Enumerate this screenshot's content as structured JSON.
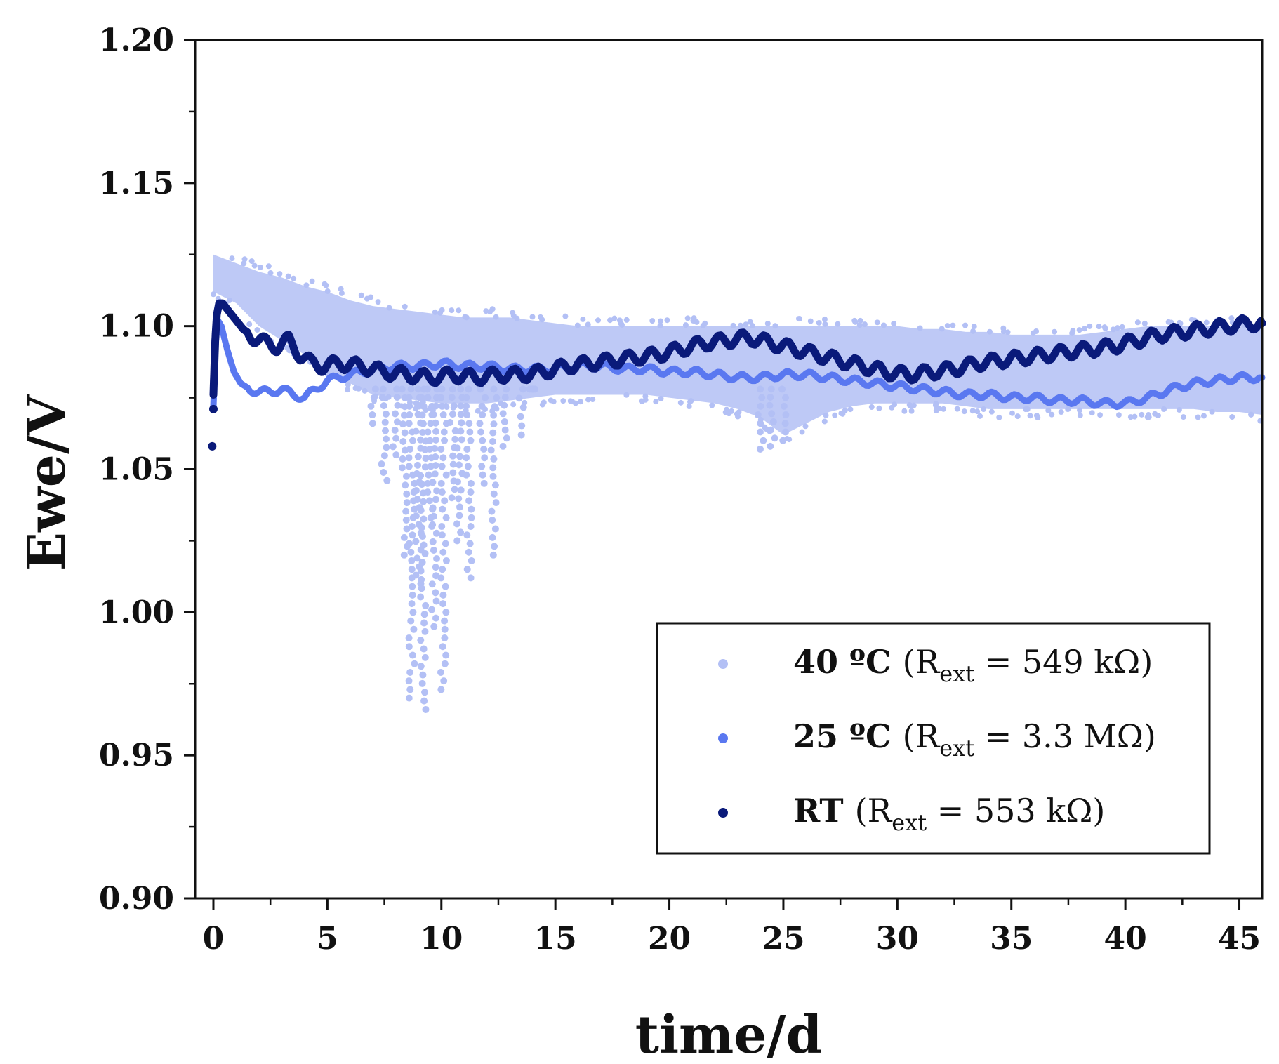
{
  "chart_data": {
    "type": "scatter",
    "title": "",
    "xlabel": "time/d",
    "ylabel": "Ewe/V",
    "xlim": [
      -0.8,
      46
    ],
    "ylim": [
      0.9,
      1.2
    ],
    "xticks": [
      "0",
      "5",
      "10",
      "15",
      "20",
      "25",
      "30",
      "35",
      "40",
      "45"
    ],
    "xtick_values": [
      0,
      5,
      10,
      15,
      20,
      25,
      30,
      35,
      40,
      45
    ],
    "yticks": [
      "0.90",
      "0.95",
      "1.00",
      "1.05",
      "1.10",
      "1.15",
      "1.20"
    ],
    "ytick_values": [
      0.9,
      0.95,
      1.0,
      1.05,
      1.1,
      1.15,
      1.2
    ],
    "legend_position": "lower-right",
    "series": [
      {
        "name": "40 ºC",
        "legend_bold": "40 ºC",
        "legend_open": "(R",
        "legend_sub": "ext",
        "legend_rest": " = 549 kΩ)",
        "color": "#b3c0f5",
        "band": {
          "x": [
            0,
            1,
            2,
            3,
            4,
            5,
            6,
            7,
            8,
            9,
            10,
            11,
            12,
            13,
            14,
            15,
            16,
            17,
            18,
            19,
            20,
            21,
            22,
            23,
            24,
            25,
            26,
            27,
            28,
            29,
            30,
            31,
            32,
            33,
            34,
            35,
            36,
            37,
            38,
            39,
            40,
            41,
            42,
            43,
            44,
            45,
            46
          ],
          "upper": [
            1.125,
            1.122,
            1.119,
            1.117,
            1.114,
            1.112,
            1.109,
            1.107,
            1.106,
            1.105,
            1.104,
            1.103,
            1.103,
            1.103,
            1.102,
            1.101,
            1.1,
            1.1,
            1.1,
            1.1,
            1.1,
            1.1,
            1.1,
            1.1,
            1.1,
            1.1,
            1.1,
            1.1,
            1.1,
            1.1,
            1.1,
            1.099,
            1.099,
            1.098,
            1.098,
            1.097,
            1.097,
            1.097,
            1.097,
            1.098,
            1.099,
            1.1,
            1.1,
            1.1,
            1.1,
            1.1,
            1.1
          ],
          "lower": [
            1.112,
            1.108,
            1.1,
            1.095,
            1.09,
            1.084,
            1.08,
            1.076,
            1.075,
            1.074,
            1.073,
            1.073,
            1.073,
            1.074,
            1.075,
            1.076,
            1.076,
            1.076,
            1.076,
            1.076,
            1.075,
            1.074,
            1.073,
            1.071,
            1.068,
            1.062,
            1.066,
            1.07,
            1.072,
            1.073,
            1.073,
            1.073,
            1.073,
            1.072,
            1.071,
            1.071,
            1.071,
            1.071,
            1.071,
            1.071,
            1.071,
            1.071,
            1.071,
            1.071,
            1.07,
            1.07,
            1.069
          ]
        },
        "dips": [
          {
            "x": 7.0,
            "y": 1.066
          },
          {
            "x": 7.5,
            "y": 1.046
          },
          {
            "x": 8.0,
            "y": 1.055
          },
          {
            "x": 8.4,
            "y": 1.02
          },
          {
            "x": 8.7,
            "y": 0.97
          },
          {
            "x": 9.0,
            "y": 1.01
          },
          {
            "x": 9.2,
            "y": 0.966
          },
          {
            "x": 9.5,
            "y": 1.03
          },
          {
            "x": 9.7,
            "y": 0.995
          },
          {
            "x": 10.1,
            "y": 0.973
          },
          {
            "x": 10.5,
            "y": 1.04
          },
          {
            "x": 10.8,
            "y": 1.025
          },
          {
            "x": 11.2,
            "y": 1.012
          },
          {
            "x": 11.8,
            "y": 1.045
          },
          {
            "x": 12.3,
            "y": 1.02
          },
          {
            "x": 12.8,
            "y": 1.058
          },
          {
            "x": 13.5,
            "y": 1.062
          },
          {
            "x": 14.0,
            "y": 1.078
          },
          {
            "x": 24.0,
            "y": 1.057
          },
          {
            "x": 24.5,
            "y": 1.058
          },
          {
            "x": 25.0,
            "y": 1.06
          }
        ]
      },
      {
        "name": "25 ºC",
        "legend_bold": "25 ºC",
        "legend_open": "(R",
        "legend_sub": "ext",
        "legend_rest": " = 3.3 MΩ)",
        "color": "#5a78f0",
        "x": [
          0,
          0.1,
          0.2,
          0.35,
          0.6,
          0.9,
          1.2,
          1.6,
          2.0,
          2.5,
          3.0,
          3.5,
          4.0,
          4.5,
          5.0,
          6.0,
          7.0,
          8.0,
          9.0,
          10.0,
          11.0,
          12.0,
          13.0,
          14.0,
          15.0,
          16.0,
          17.0,
          18.0,
          19.0,
          20.0,
          21.0,
          22.0,
          23.0,
          24.0,
          25.0,
          26.0,
          27.0,
          28.0,
          29.0,
          30.0,
          31.0,
          32.0,
          33.0,
          34.0,
          35.0,
          36.0,
          37.0,
          38.0,
          39.0,
          40.0,
          41.0,
          42.0,
          43.0,
          44.0,
          45.0,
          46.0
        ],
        "y": [
          1.072,
          1.094,
          1.102,
          1.1,
          1.092,
          1.084,
          1.08,
          1.078,
          1.077,
          1.077,
          1.078,
          1.076,
          1.075,
          1.078,
          1.081,
          1.083,
          1.085,
          1.086,
          1.086,
          1.087,
          1.086,
          1.086,
          1.085,
          1.085,
          1.085,
          1.086,
          1.086,
          1.085,
          1.085,
          1.084,
          1.084,
          1.083,
          1.082,
          1.082,
          1.083,
          1.083,
          1.082,
          1.081,
          1.08,
          1.079,
          1.078,
          1.077,
          1.076,
          1.076,
          1.075,
          1.075,
          1.074,
          1.074,
          1.073,
          1.073,
          1.075,
          1.078,
          1.08,
          1.081,
          1.082,
          1.082
        ]
      },
      {
        "name": "RT",
        "legend_bold": "RT",
        "legend_open": "(R",
        "legend_sub": "ext",
        "legend_rest": " = 553 kΩ)",
        "color": "#0a1a7a",
        "x": [
          0,
          0.08,
          0.15,
          0.25,
          0.4,
          0.6,
          0.9,
          1.3,
          1.8,
          2.3,
          2.8,
          3.3,
          3.8,
          4.3,
          4.8,
          5.5,
          6.5,
          7.5,
          8.5,
          9.5,
          10.5,
          11.5,
          12.5,
          13.5,
          14.5,
          15.5,
          16.5,
          17.5,
          18.5,
          19.5,
          20.5,
          21.5,
          22.5,
          23.5,
          24.5,
          25.5,
          26.5,
          27.5,
          28.5,
          29.5,
          30.5,
          31.5,
          32.5,
          33.5,
          34.5,
          35.5,
          36.5,
          37.5,
          38.5,
          39.5,
          40.5,
          41.5,
          42.5,
          43.5,
          44.5,
          45.5,
          46.0
        ],
        "y": [
          1.076,
          1.095,
          1.104,
          1.108,
          1.108,
          1.106,
          1.103,
          1.099,
          1.096,
          1.094,
          1.093,
          1.095,
          1.09,
          1.087,
          1.086,
          1.087,
          1.086,
          1.084,
          1.083,
          1.082,
          1.083,
          1.082,
          1.083,
          1.083,
          1.084,
          1.086,
          1.087,
          1.088,
          1.089,
          1.09,
          1.092,
          1.094,
          1.095,
          1.096,
          1.094,
          1.092,
          1.09,
          1.088,
          1.086,
          1.084,
          1.083,
          1.084,
          1.085,
          1.087,
          1.088,
          1.089,
          1.09,
          1.091,
          1.092,
          1.093,
          1.095,
          1.097,
          1.098,
          1.099,
          1.1,
          1.101,
          1.101
        ]
      }
    ],
    "extra_points": [
      {
        "series": "RT",
        "x": -0.05,
        "y": 1.058
      },
      {
        "series": "RT",
        "x": 0.0,
        "y": 1.071
      }
    ]
  }
}
